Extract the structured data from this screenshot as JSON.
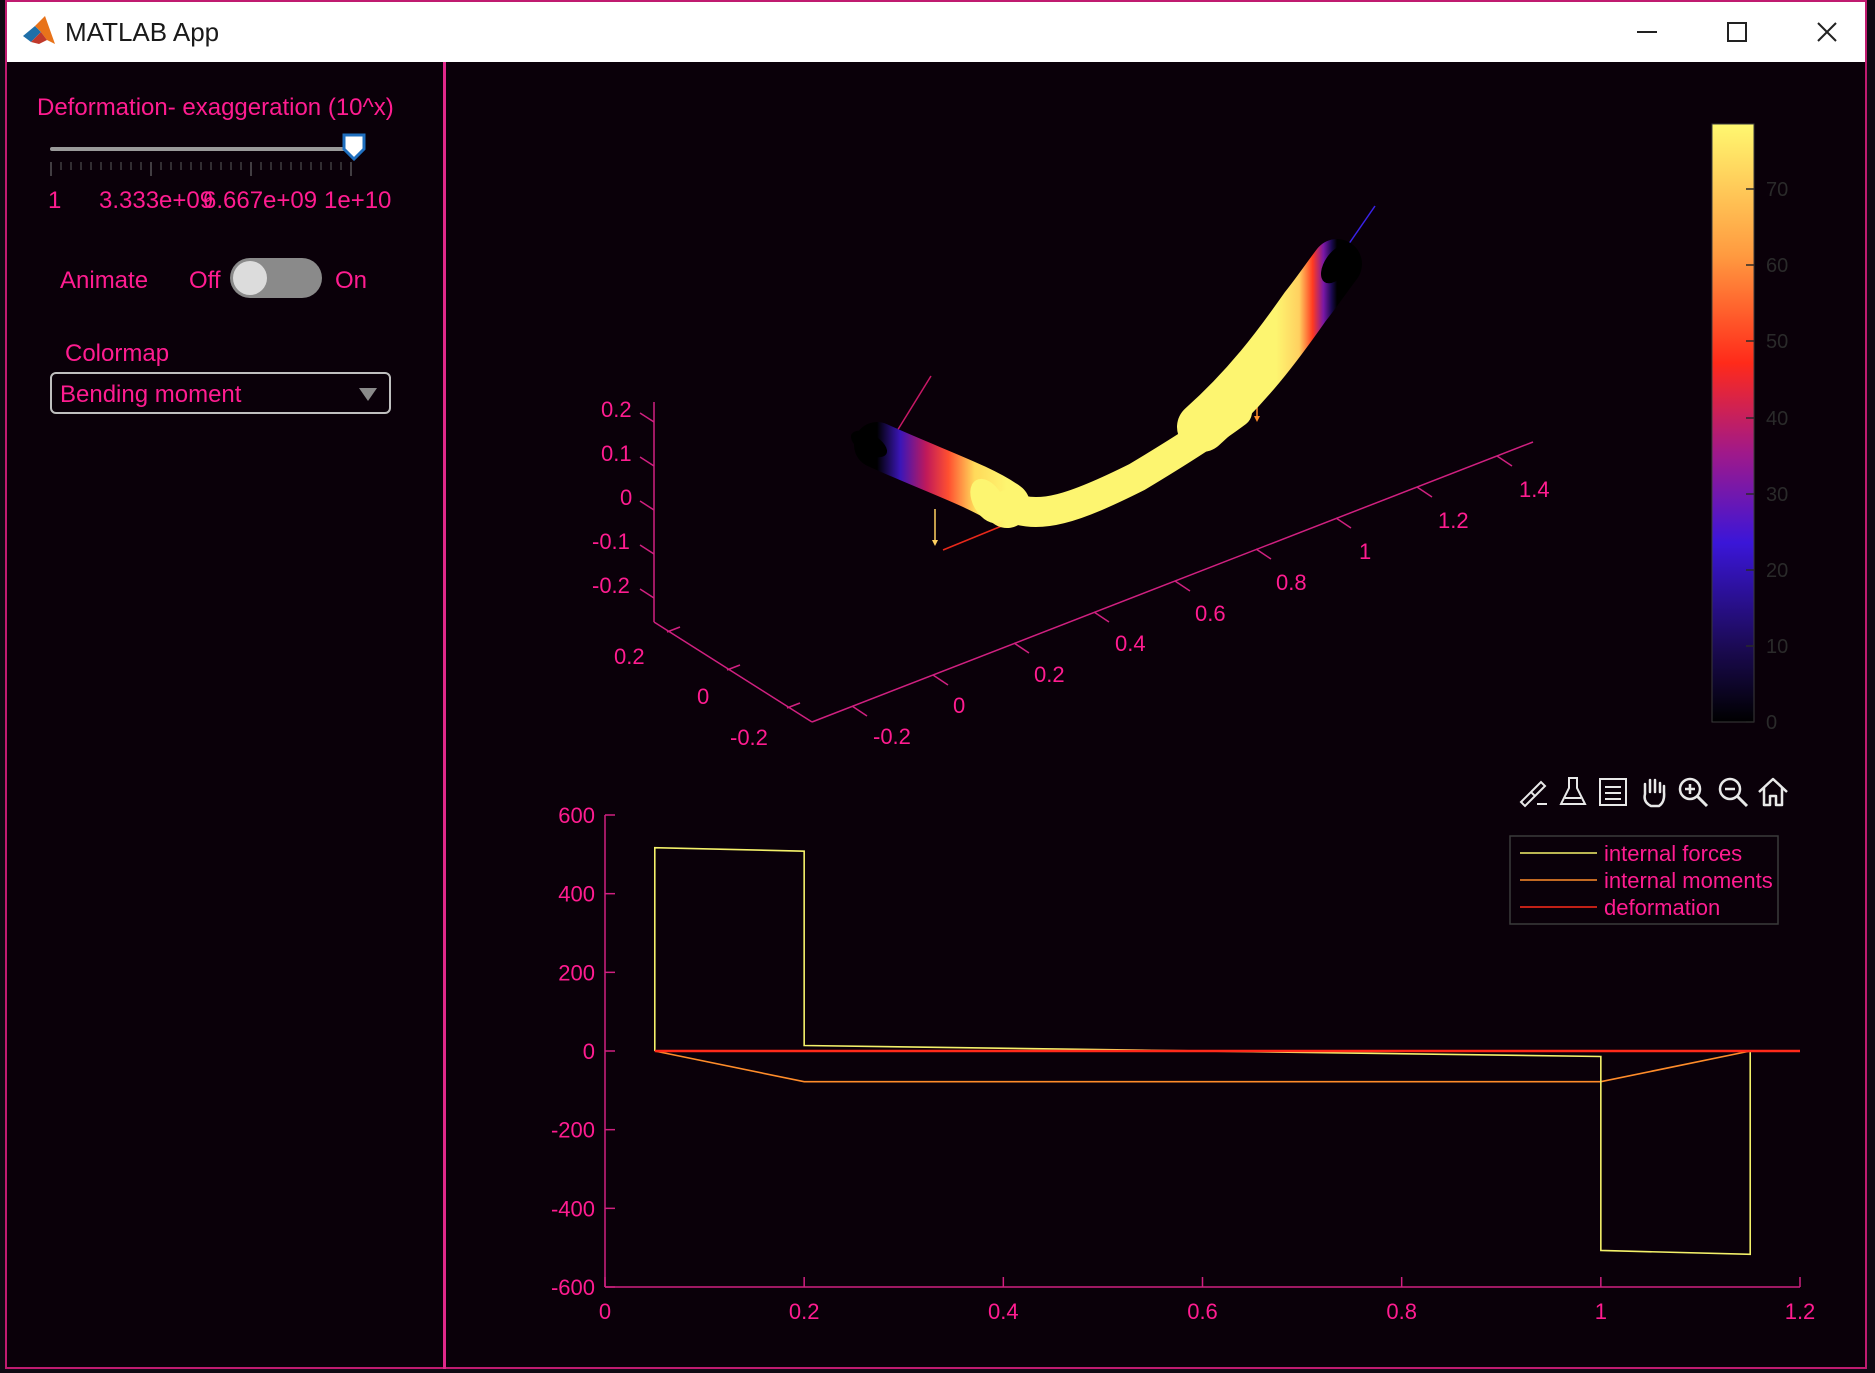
{
  "window": {
    "title": "MATLAB App"
  },
  "controls": {
    "slider": {
      "label": "Deformation- exaggeration (10^x)",
      "tick_labels": [
        "1",
        "3.333e+09",
        "6.667e+09",
        "1e+10"
      ],
      "value_fraction": 1.0
    },
    "animate": {
      "label": "Animate",
      "off_label": "Off",
      "on_label": "On",
      "state": "Off"
    },
    "colormap": {
      "label": "Colormap",
      "selected": "Bending moment"
    }
  },
  "axes3d": {
    "z_ticks": [
      "0.2",
      "0.1",
      "0",
      "-0.1",
      "-0.2"
    ],
    "y_ticks": [
      "0.2",
      "0",
      "-0.2"
    ],
    "x_ticks": [
      "-0.2",
      "0",
      "0.2",
      "0.4",
      "0.6",
      "0.8",
      "1",
      "1.2",
      "1.4"
    ]
  },
  "colorbar": {
    "ticks": [
      "70",
      "60",
      "50",
      "40",
      "30",
      "20",
      "10",
      "0"
    ],
    "colormap": "hot-purple"
  },
  "toolbar": {
    "icons": [
      "brush-icon",
      "data-tip-icon",
      "legend-icon",
      "pan-icon",
      "zoom-in-icon",
      "zoom-out-icon",
      "home-icon"
    ]
  },
  "chart_data": {
    "type": "line",
    "xlim": [
      0,
      1.2
    ],
    "ylim": [
      -600,
      600
    ],
    "x_ticks": [
      "0",
      "0.2",
      "0.4",
      "0.6",
      "0.8",
      "1",
      "1.2"
    ],
    "y_ticks": [
      "600",
      "400",
      "200",
      "0",
      "-200",
      "-400",
      "-600"
    ],
    "legend_position": "top-right",
    "series": [
      {
        "name": "internal forces",
        "color": "#f4f16a",
        "x": [
          0.05,
          0.05,
          0.2,
          0.2,
          1.0,
          1.0,
          1.15,
          1.15
        ],
        "y": [
          0,
          517,
          508,
          14,
          -14,
          -507,
          -517,
          0
        ]
      },
      {
        "name": "internal moments",
        "color": "#ff8c2a",
        "x": [
          0.05,
          0.2,
          1.0,
          1.15
        ],
        "y": [
          0,
          -78,
          -78,
          0
        ]
      },
      {
        "name": "deformation",
        "color": "#ff2a1a",
        "x": [
          0.05,
          1.2
        ],
        "y": [
          0,
          0
        ]
      }
    ]
  }
}
